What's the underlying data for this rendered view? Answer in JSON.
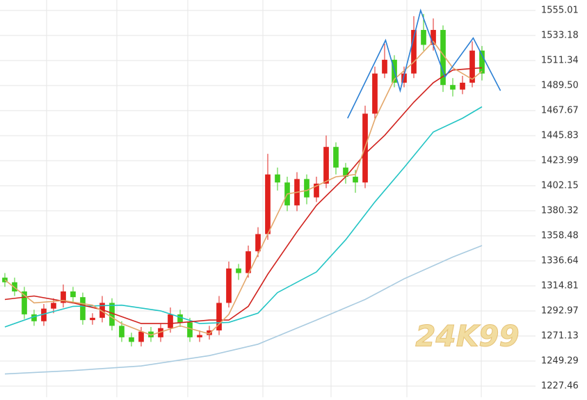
{
  "chart_data": {
    "type": "candlestick",
    "watermark": "24K99",
    "xlim": [
      -0.5,
      54.5
    ],
    "ylim": [
      1217.75,
      1564.11
    ],
    "yticks": [
      1555.01,
      1533.18,
      1511.34,
      {
        "value": 1489.5,
        "label": "1489.50"
      },
      1467.67,
      1445.83,
      1423.99,
      1402.15,
      1380.32,
      1358.48,
      1336.64,
      1314.81,
      1292.97,
      1271.13,
      1249.29,
      1227.46
    ],
    "grid": true,
    "up_color": "#e0211d",
    "down_color": "#3fcc1f",
    "candles": {
      "open": [
        1322,
        1318,
        1310,
        1290,
        1284,
        1295,
        1300,
        1310,
        1305,
        1285,
        1287,
        1300,
        1280,
        1270,
        1266,
        1275,
        1270,
        1278,
        1290,
        1283,
        1270,
        1272,
        1276,
        1300,
        1330,
        1326,
        1345,
        1360,
        1412,
        1405,
        1385,
        1408,
        1392,
        1404,
        1436,
        1418,
        1410,
        1405,
        1465,
        1500,
        1512,
        1492,
        1500,
        1538,
        1525,
        1538,
        1490,
        1486,
        1492,
        1520
      ],
      "high": [
        1326,
        1322,
        1314,
        1294,
        1299,
        1304,
        1316,
        1314,
        1309,
        1291,
        1306,
        1304,
        1284,
        1274,
        1279,
        1279,
        1282,
        1296,
        1294,
        1287,
        1276,
        1280,
        1306,
        1336,
        1334,
        1350,
        1366,
        1430,
        1418,
        1410,
        1414,
        1412,
        1410,
        1446,
        1440,
        1422,
        1416,
        1472,
        1506,
        1526,
        1516,
        1506,
        1550,
        1552,
        1548,
        1542,
        1496,
        1498,
        1528,
        1524
      ],
      "low": [
        1314,
        1306,
        1286,
        1280,
        1280,
        1291,
        1296,
        1300,
        1281,
        1281,
        1283,
        1276,
        1266,
        1262,
        1262,
        1266,
        1266,
        1274,
        1279,
        1266,
        1266,
        1268,
        1272,
        1296,
        1320,
        1322,
        1340,
        1355,
        1398,
        1380,
        1380,
        1386,
        1388,
        1400,
        1412,
        1404,
        1396,
        1400,
        1460,
        1496,
        1488,
        1488,
        1496,
        1520,
        1520,
        1484,
        1480,
        1482,
        1488,
        1494
      ],
      "close": [
        1318,
        1310,
        1290,
        1284,
        1295,
        1300,
        1310,
        1305,
        1285,
        1287,
        1300,
        1280,
        1270,
        1266,
        1275,
        1270,
        1278,
        1290,
        1283,
        1270,
        1272,
        1276,
        1300,
        1330,
        1326,
        1345,
        1360,
        1412,
        1405,
        1385,
        1408,
        1392,
        1404,
        1436,
        1418,
        1410,
        1405,
        1465,
        1500,
        1512,
        1492,
        1500,
        1538,
        1525,
        1538,
        1490,
        1486,
        1492,
        1520,
        1500
      ]
    },
    "lines": [
      {
        "color": "#a9cbe0",
        "x": [
          0,
          7,
          14,
          21,
          26,
          32,
          37,
          41,
          46,
          49
        ],
        "values": [
          1238,
          1241,
          1245,
          1254,
          1264,
          1285,
          1303,
          1321,
          1340,
          1350
        ]
      },
      {
        "color": "#22c4c4",
        "x": [
          0,
          3,
          7,
          12,
          16,
          20,
          23,
          26,
          28,
          32,
          35,
          38,
          41,
          44,
          47,
          49
        ],
        "values": [
          1279,
          1288,
          1297,
          1298,
          1293,
          1282,
          1283,
          1291,
          1309,
          1327,
          1355,
          1388,
          1418,
          1449,
          1461,
          1471
        ]
      },
      {
        "color": "#d0201c",
        "x": [
          0,
          3,
          7,
          10,
          14,
          17,
          21,
          23,
          25,
          27,
          30,
          32,
          35,
          37,
          39,
          42,
          44,
          46,
          49
        ],
        "values": [
          1303,
          1306,
          1300,
          1294,
          1282,
          1282,
          1285,
          1285,
          1297,
          1325,
          1362,
          1385,
          1410,
          1430,
          1446,
          1475,
          1492,
          1503,
          1505
        ]
      },
      {
        "color": "#e3a76a",
        "x": [
          0,
          3,
          6,
          9,
          12,
          15,
          18,
          21,
          23,
          25,
          27,
          29,
          31,
          34,
          36,
          38,
          40,
          42,
          44,
          46,
          48,
          49
        ],
        "values": [
          1320,
          1300,
          1302,
          1298,
          1282,
          1272,
          1280,
          1273,
          1290,
          1325,
          1360,
          1395,
          1398,
          1410,
          1412,
          1460,
          1495,
          1510,
          1528,
          1505,
          1495,
          1502
        ]
      },
      {
        "color": "#2a7fd4",
        "x": [
          35.2,
          39.1,
          40.6,
          42.7,
          45.2,
          48.1,
          50.9
        ],
        "values": [
          1461,
          1529,
          1485,
          1555,
          1497,
          1531,
          1485
        ]
      }
    ]
  }
}
